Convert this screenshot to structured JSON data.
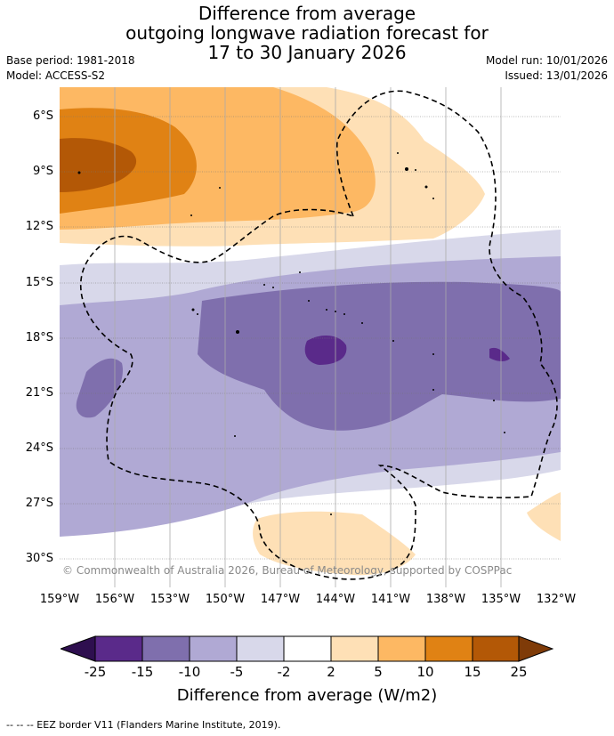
{
  "title": {
    "line1": "Difference from average",
    "line2": "outgoing longwave radiation forecast for",
    "line3": "17 to 30 January 2026"
  },
  "meta": {
    "base_period": "Base period: 1981-2018",
    "model": "Model: ACCESS-S2",
    "model_run": "Model run: 10/01/2026",
    "issued": "Issued: 13/01/2026"
  },
  "map": {
    "lat_labels": [
      "6°S",
      "9°S",
      "12°S",
      "15°S",
      "18°S",
      "21°S",
      "24°S",
      "27°S",
      "30°S"
    ],
    "lon_labels": [
      "159°W",
      "156°W",
      "153°W",
      "150°W",
      "147°W",
      "144°W",
      "141°W",
      "138°W",
      "135°W",
      "132°W"
    ],
    "copyright": "© Commonwealth of Australia 2026, Bureau of Meteorology, supported by COSPPac",
    "eez_legend": "--  --  -- EEZ border V11 (Flanders Marine Institute, 2019)."
  },
  "colorbar": {
    "title": "Difference from average (W/m2)",
    "ticks": [
      "-25",
      "-15",
      "-10",
      "-5",
      "-2",
      "2",
      "5",
      "10",
      "15",
      "25"
    ],
    "colors": {
      "under": "#2e0f4f",
      "n25_15": "#5a2a8a",
      "n15_10": "#7f6fad",
      "n10_5": "#b0a9d4",
      "n5_2": "#d8d8ea",
      "n2_2": "#ffffff",
      "p2_5": "#fee0b6",
      "p5_10": "#fdb863",
      "p10_15": "#e08214",
      "p15_25": "#b35806",
      "over": "#7f3b08"
    }
  }
}
